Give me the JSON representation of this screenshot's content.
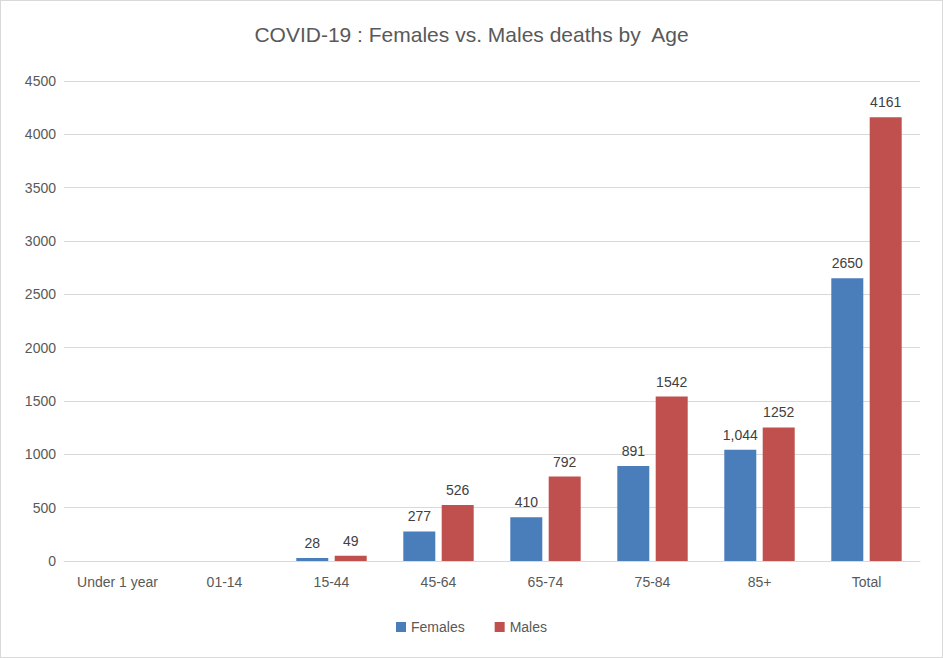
{
  "chart_data": {
    "type": "bar",
    "title": "COVID-19 : Females vs. Males deaths by  Age",
    "categories": [
      "Under 1 year",
      "01-14",
      "15-44",
      "45-64",
      "65-74",
      "75-84",
      "85+",
      "Total"
    ],
    "series": [
      {
        "name": "Females",
        "color": "#4a7ebb",
        "values": [
          null,
          null,
          28,
          277,
          410,
          891,
          1044,
          2650
        ],
        "value_labels": [
          null,
          null,
          "28",
          "277",
          "410",
          "891",
          "1,044",
          "2650"
        ]
      },
      {
        "name": "Males",
        "color": "#c0504d",
        "values": [
          null,
          null,
          49,
          526,
          792,
          1542,
          1252,
          4161
        ]
      }
    ],
    "ylim": [
      0,
      4500
    ],
    "yticks": [
      0,
      500,
      1000,
      1500,
      2000,
      2500,
      3000,
      3500,
      4000,
      4500
    ],
    "grid": true,
    "legend": "bottom",
    "data_labels": true
  }
}
